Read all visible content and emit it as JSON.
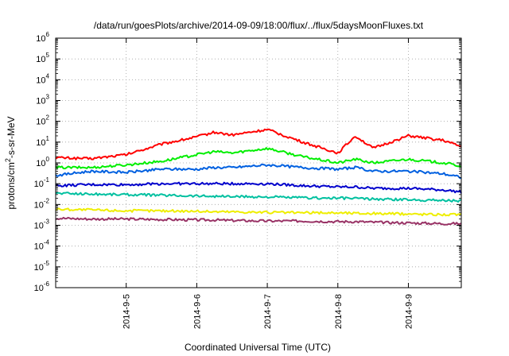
{
  "chart_data": {
    "type": "line",
    "title": "/data/run/goesPlots/archive/2014-09-09/18:00/flux/../flux/5daysMoonFluxes.txt",
    "xlabel": "Coordinated Universal Time (UTC)",
    "ylabel": "protons/cm²-s-sr-MeV",
    "y_scale": "log",
    "ylim": [
      1e-06,
      1000000.0
    ],
    "y_ticks": [
      {
        "value": 1e-06,
        "base": "10",
        "exp": "-6"
      },
      {
        "value": 1e-05,
        "base": "10",
        "exp": "-5"
      },
      {
        "value": 0.0001,
        "base": "10",
        "exp": "-4"
      },
      {
        "value": 0.001,
        "base": "10",
        "exp": "-3"
      },
      {
        "value": 0.01,
        "base": "10",
        "exp": "-2"
      },
      {
        "value": 0.1,
        "base": "10",
        "exp": "-1"
      },
      {
        "value": 1.0,
        "base": "10",
        "exp": "0"
      },
      {
        "value": 10.0,
        "base": "10",
        "exp": "1"
      },
      {
        "value": 100.0,
        "base": "10",
        "exp": "2"
      },
      {
        "value": 1000.0,
        "base": "10",
        "exp": "3"
      },
      {
        "value": 10000.0,
        "base": "10",
        "exp": "4"
      },
      {
        "value": 100000.0,
        "base": "10",
        "exp": "5"
      },
      {
        "value": 1000000.0,
        "base": "10",
        "exp": "6"
      }
    ],
    "xlim": [
      "2014-09-04 00:00",
      "2014-09-09 18:00"
    ],
    "x_ticks": [
      "2014-9-5",
      "2014-9-6",
      "2014-9-7",
      "2014-9-8",
      "2014-9-9"
    ],
    "grid": true,
    "x": [
      "2014-09-04 00:00",
      "2014-09-04 12:00",
      "2014-09-05 00:00",
      "2014-09-05 12:00",
      "2014-09-06 00:00",
      "2014-09-06 06:00",
      "2014-09-06 12:00",
      "2014-09-07 00:00",
      "2014-09-07 12:00",
      "2014-09-08 00:00",
      "2014-09-08 06:00",
      "2014-09-08 12:00",
      "2014-09-09 00:00",
      "2014-09-09 12:00",
      "2014-09-09 18:00"
    ],
    "series": [
      {
        "color": "#ff0000",
        "values": [
          1.8,
          1.6,
          2.5,
          8,
          18,
          30,
          22,
          40,
          10,
          3,
          20,
          5,
          20,
          12,
          6
        ]
      },
      {
        "color": "#00ee00",
        "values": [
          0.6,
          0.6,
          0.8,
          1.2,
          2.5,
          3.5,
          3,
          5,
          2,
          1,
          1.5,
          1,
          1.5,
          1,
          0.7
        ]
      },
      {
        "color": "#0060e0",
        "values": [
          0.25,
          0.4,
          0.35,
          0.5,
          0.5,
          0.6,
          0.6,
          0.8,
          0.6,
          0.5,
          0.6,
          0.4,
          0.4,
          0.3,
          0.2
        ]
      },
      {
        "color": "#0000cc",
        "values": [
          0.08,
          0.09,
          0.09,
          0.1,
          0.1,
          0.1,
          0.1,
          0.1,
          0.08,
          0.07,
          0.07,
          0.06,
          0.06,
          0.05,
          0.04
        ]
      },
      {
        "color": "#00c0a0",
        "values": [
          0.035,
          0.032,
          0.03,
          0.028,
          0.026,
          0.025,
          0.024,
          0.023,
          0.021,
          0.02,
          0.02,
          0.018,
          0.017,
          0.016,
          0.015
        ]
      },
      {
        "color": "#eeee00",
        "values": [
          0.006,
          0.0055,
          0.005,
          0.005,
          0.0048,
          0.0045,
          0.0045,
          0.0042,
          0.004,
          0.004,
          0.0038,
          0.0037,
          0.0035,
          0.0033,
          0.0033
        ]
      },
      {
        "color": "#993366",
        "values": [
          0.0022,
          0.002,
          0.002,
          0.0019,
          0.0018,
          0.0018,
          0.0017,
          0.0016,
          0.0016,
          0.0015,
          0.0015,
          0.0014,
          0.0013,
          0.0012,
          0.0012
        ]
      }
    ]
  }
}
